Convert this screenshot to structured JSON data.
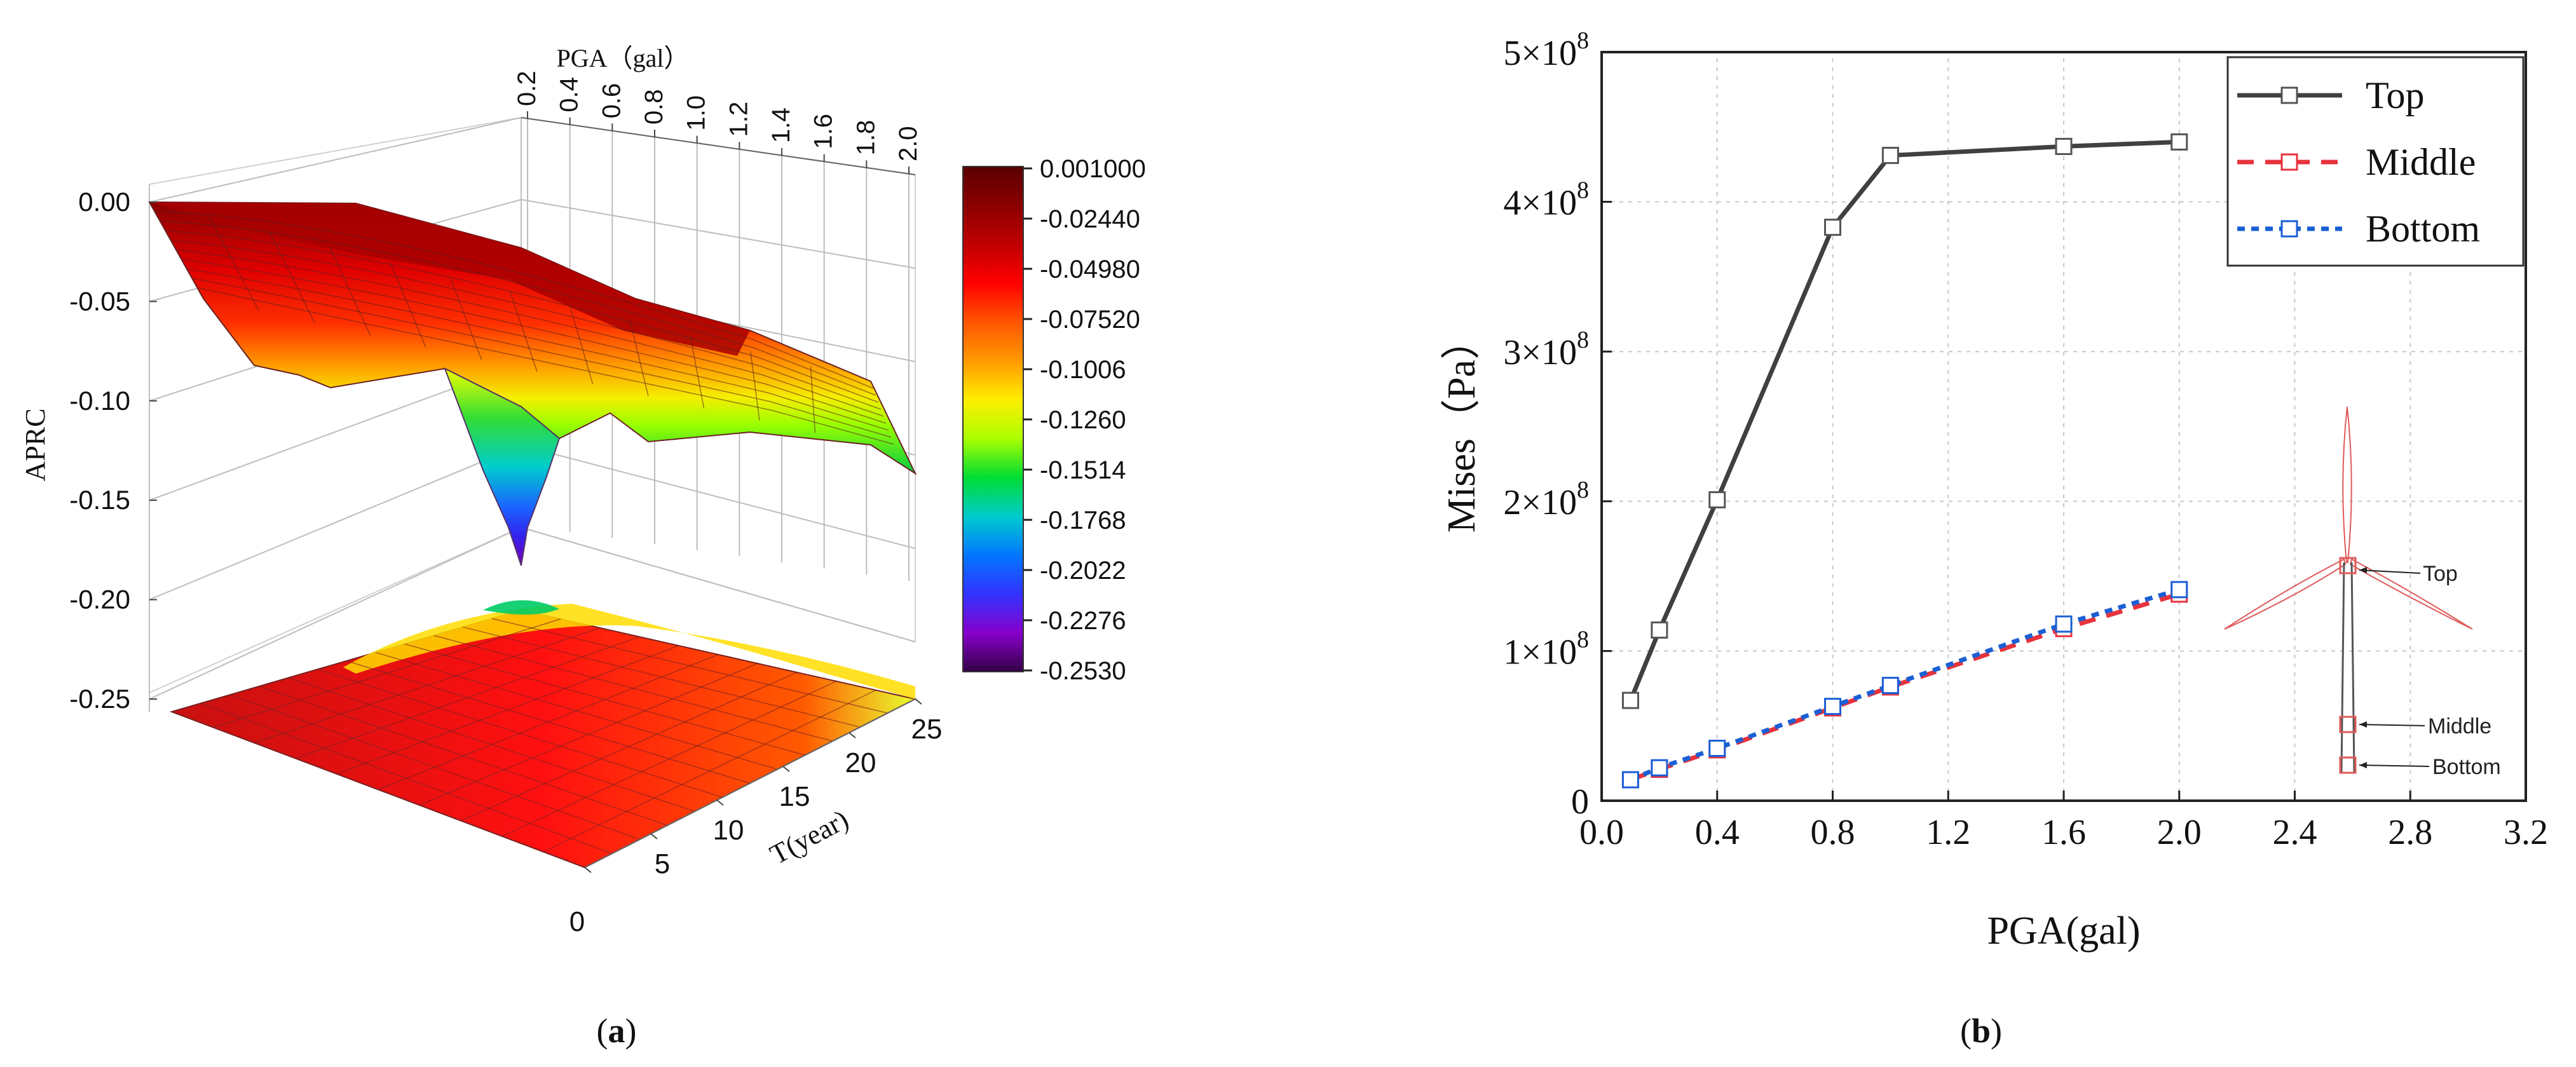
{
  "panel_a": {
    "caption_open": "(",
    "caption_letter": "a",
    "caption_close": ")",
    "zlabel": "APRC",
    "z_ticks": [
      "0.00",
      "-0.05",
      "-0.10",
      "-0.15",
      "-0.20",
      "-0.25"
    ],
    "pga_label": "PGA（gal）",
    "pga_ticks": [
      "0.2",
      "0.4",
      "0.6",
      "0.8",
      "1.0",
      "1.2",
      "1.4",
      "1.6",
      "1.8",
      "2.0"
    ],
    "t_label": "T(year)",
    "t_ticks": [
      "0",
      "5",
      "10",
      "15",
      "20",
      "25"
    ],
    "colorbar_ticks": [
      "0.001000",
      "-0.02440",
      "-0.04980",
      "-0.07520",
      "-0.1006",
      "-0.1260",
      "-0.1514",
      "-0.1768",
      "-0.2022",
      "-0.2276",
      "-0.2530"
    ],
    "colorbar_colors": [
      "#5a0000",
      "#8b0000",
      "#c00000",
      "#ff0000",
      "#ff5500",
      "#ff9900",
      "#ffee00",
      "#aaff00",
      "#00dd33",
      "#00cccc",
      "#0077ff",
      "#3333ff",
      "#8800cc",
      "#330044"
    ]
  },
  "chart_data": [
    {
      "type": "surface",
      "zlabel": "APRC",
      "xlabel": "PGA（gal）",
      "ylabel": "T(year)",
      "xlim": [
        0.2,
        2.0
      ],
      "ylim": [
        0,
        25
      ],
      "zlim": [
        -0.25,
        0.0
      ],
      "colorbar_range": [
        -0.253,
        0.001
      ],
      "minimum": {
        "PGA": 1.0,
        "T": 25,
        "APRC": -0.253
      }
    },
    {
      "type": "line",
      "xlabel": "PGA(gal)",
      "ylabel": "Mises（Pa）",
      "xlim": [
        0.0,
        3.2
      ],
      "ylim": [
        0,
        500000000
      ],
      "x_ticks": [
        "0.0",
        "0.4",
        "0.8",
        "1.2",
        "1.6",
        "2.0",
        "2.4",
        "2.8",
        "3.2"
      ],
      "y_ticks": [
        "0",
        "1×10",
        "2×10",
        "3×10",
        "4×10",
        "5×10"
      ],
      "y_tick_exp": "8",
      "grid": true,
      "legend_position": "top-right",
      "x": [
        0.1,
        0.2,
        0.4,
        0.8,
        1.0,
        1.6,
        2.0
      ],
      "series": [
        {
          "name": "Top",
          "color": "#404040",
          "style": "solid",
          "values": [
            67000000,
            114000000,
            201000000,
            383000000,
            431000000,
            437000000,
            440000000
          ]
        },
        {
          "name": "Middle",
          "color": "#e8323c",
          "style": "dashed",
          "values": [
            14000000,
            21000000,
            34000000,
            62000000,
            76000000,
            115000000,
            138000000
          ]
        },
        {
          "name": "Bottom",
          "color": "#1a5fd6",
          "style": "dotted",
          "values": [
            14000000,
            22000000,
            35000000,
            63000000,
            77000000,
            118000000,
            141000000
          ]
        }
      ],
      "inset_labels": [
        "Top",
        "Middle",
        "Bottom"
      ],
      "caption_open": "(",
      "caption_letter": "b",
      "caption_close": ")"
    }
  ]
}
